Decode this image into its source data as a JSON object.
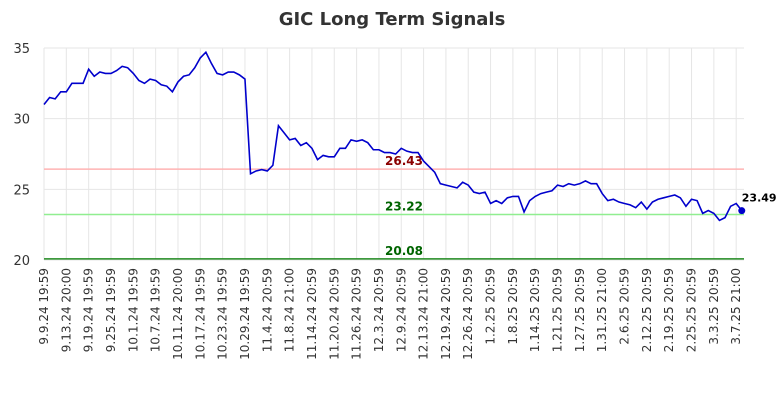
{
  "chart_data": {
    "type": "line",
    "title": "GIC Long Term Signals",
    "categories": [
      "9.9.24 19:59",
      null,
      null,
      null,
      "9.13.24 20:00",
      null,
      null,
      null,
      "9.19.24 19:59",
      null,
      null,
      null,
      "9.25.24 19:59",
      null,
      null,
      null,
      "10.1.24 19:59",
      null,
      null,
      null,
      "10.7.24 19:59",
      null,
      null,
      null,
      "10.11.24 20:00",
      null,
      null,
      null,
      "10.17.24 19:59",
      null,
      null,
      null,
      "10.23.24 19:59",
      null,
      null,
      null,
      "10.29.24 19:59",
      null,
      null,
      null,
      "11.4.24 20:59",
      null,
      null,
      null,
      "11.8.24 21:00",
      null,
      null,
      null,
      "11.14.24 20:59",
      null,
      null,
      null,
      "11.20.24 20:59",
      null,
      null,
      null,
      "11.26.24 20:59",
      null,
      null,
      null,
      "12.3.24 20:59",
      null,
      null,
      null,
      "12.9.24 20:59",
      null,
      null,
      null,
      "12.13.24 21:00",
      null,
      null,
      null,
      "12.19.24 20:59",
      null,
      null,
      null,
      "12.26.24 20:59",
      null,
      null,
      null,
      "1.2.25 20:59",
      null,
      null,
      null,
      "1.8.25 20:59",
      null,
      null,
      null,
      "1.14.25 20:59",
      null,
      null,
      null,
      "1.21.25 20:59",
      null,
      null,
      null,
      "1.27.25 20:59",
      null,
      null,
      null,
      "1.31.25 21:00",
      null,
      null,
      null,
      "2.6.25 20:59",
      null,
      null,
      null,
      "2.12.25 20:59",
      null,
      null,
      null,
      "2.19.25 20:59",
      null,
      null,
      null,
      "2.25.25 20:59",
      null,
      null,
      null,
      "3.3.25 20:59",
      null,
      null,
      null,
      "3.7.25 21:00",
      null
    ],
    "series": [
      {
        "color": "#0000cc",
        "values": [
          31.0,
          31.5,
          31.4,
          31.9,
          31.9,
          32.5,
          32.5,
          32.5,
          33.5,
          33.0,
          33.3,
          33.2,
          33.2,
          33.4,
          33.7,
          33.6,
          33.2,
          32.7,
          32.5,
          32.8,
          32.7,
          32.4,
          32.3,
          31.9,
          32.6,
          33.0,
          33.1,
          33.6,
          34.3,
          34.7,
          33.9,
          33.2,
          33.1,
          33.3,
          33.3,
          33.1,
          32.8,
          26.1,
          26.3,
          26.4,
          26.3,
          26.7,
          29.5,
          29.0,
          28.5,
          28.6,
          28.1,
          28.3,
          27.9,
          27.1,
          27.4,
          27.3,
          27.3,
          27.9,
          27.9,
          28.5,
          28.4,
          28.5,
          28.3,
          27.8,
          27.8,
          27.6,
          27.6,
          27.5,
          27.9,
          27.7,
          27.6,
          27.6,
          27.0,
          26.6,
          26.2,
          25.4,
          25.3,
          25.2,
          25.1,
          25.5,
          25.3,
          24.8,
          24.7,
          24.8,
          24.0,
          24.2,
          24.0,
          24.4,
          24.5,
          24.5,
          23.4,
          24.2,
          24.5,
          24.7,
          24.8,
          24.9,
          25.3,
          25.2,
          25.4,
          25.3,
          25.4,
          25.6,
          25.4,
          25.4,
          24.7,
          24.2,
          24.3,
          24.1,
          24.0,
          23.9,
          23.7,
          24.1,
          23.6,
          24.1,
          24.3,
          24.4,
          24.5,
          24.6,
          24.4,
          23.8,
          24.3,
          24.2,
          23.3,
          23.5,
          23.3,
          22.8,
          23.0,
          23.8,
          24.0,
          23.49
        ]
      }
    ],
    "hlines": [
      {
        "value": 26.43,
        "color": "#ffb3b3",
        "label_color": "#8b0000"
      },
      {
        "value": 23.22,
        "color": "#90ee90",
        "label_color": "#006400"
      },
      {
        "value": 20.08,
        "color": "#228b22",
        "label_color": "#006400"
      }
    ],
    "ylim": [
      20,
      35
    ],
    "yticks": [
      20,
      25,
      30,
      35
    ],
    "grid": true
  }
}
